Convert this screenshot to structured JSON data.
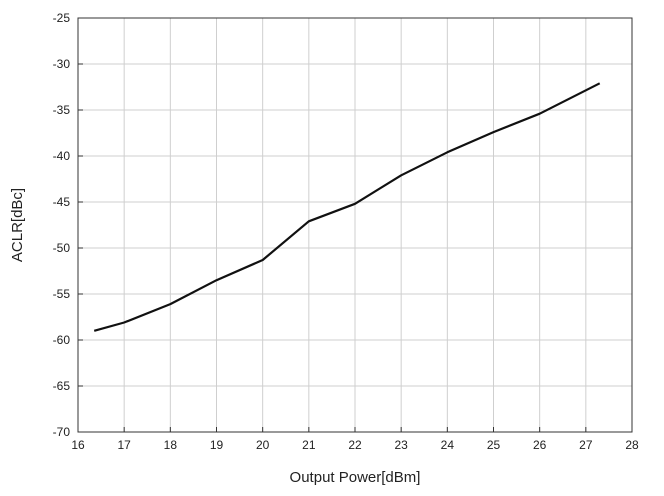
{
  "chart_data": {
    "type": "line",
    "title": "",
    "xlabel": "Output Power[dBm]",
    "ylabel": "ACLR[dBc]",
    "xlim": [
      16,
      28
    ],
    "ylim": [
      -70,
      -25
    ],
    "xticks": [
      16,
      17,
      18,
      19,
      20,
      21,
      22,
      23,
      24,
      25,
      26,
      27,
      28
    ],
    "yticks": [
      -25,
      -30,
      -35,
      -40,
      -45,
      -50,
      -55,
      -60,
      -65,
      -70
    ],
    "grid": true,
    "series": [
      {
        "color": "#111111",
        "x": [
          16.35,
          17,
          18,
          19,
          20,
          21,
          22,
          23,
          24,
          25,
          26,
          27.3
        ],
        "y": [
          -59.0,
          -58.1,
          -56.1,
          -53.5,
          -51.3,
          -47.1,
          -45.2,
          -42.1,
          -39.6,
          -37.4,
          -35.4,
          -32.1
        ]
      }
    ]
  }
}
